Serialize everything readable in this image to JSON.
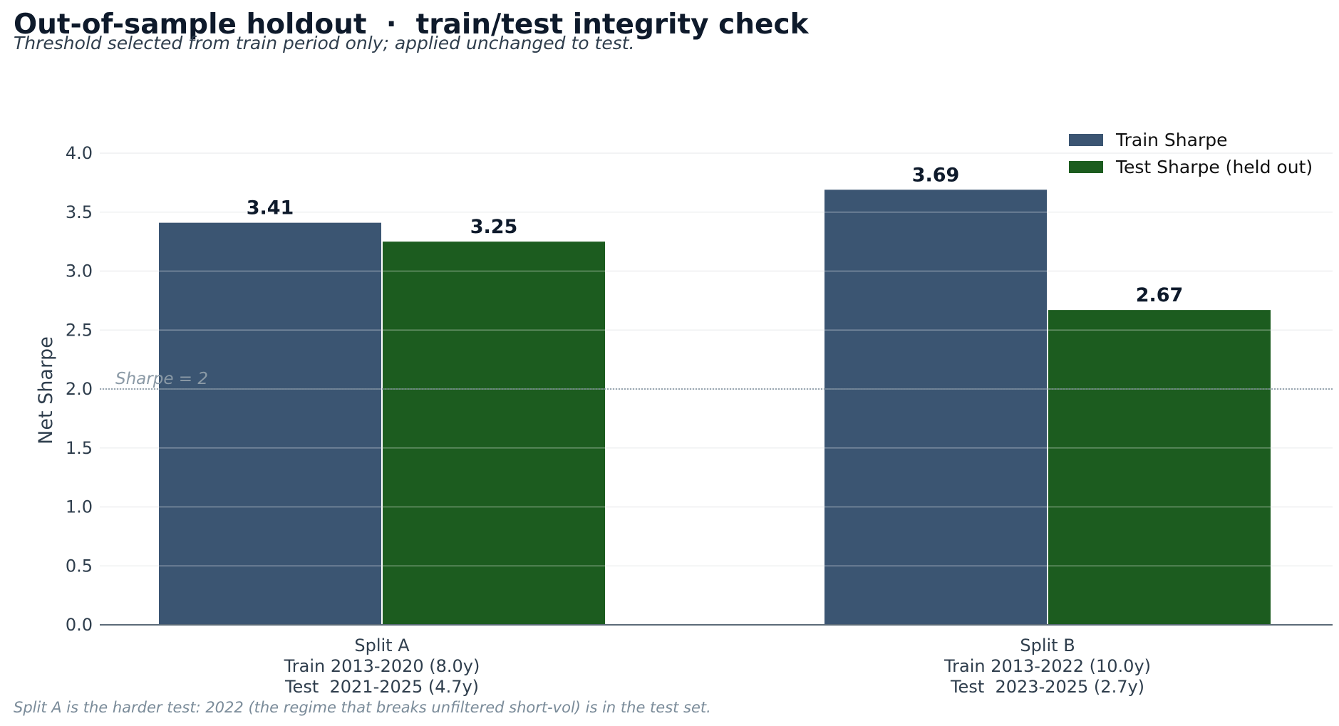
{
  "title": "Out-of-sample holdout  ·  train/test integrity check",
  "subtitle": "Threshold selected from train period only; applied unchanged to test.",
  "footnote": "Split A is the harder test: 2022 (the regime that breaks unfiltered short-vol) is in the test set.",
  "colors": {
    "train": "#3b5572",
    "test": "#1c5c1f",
    "text": "#0e1a2b",
    "axis_text": "#2f3e4d",
    "grid": "#e6e9ec",
    "muted": "#7a8b99"
  },
  "chart_data": {
    "type": "bar",
    "categories": [
      [
        "Split A",
        "Train 2013-2020 (8.0y)",
        "Test  2021-2025 (4.7y)"
      ],
      [
        "Split B",
        "Train 2013-2022 (10.0y)",
        "Test  2023-2025 (2.7y)"
      ]
    ],
    "series": [
      {
        "name": "Train Sharpe",
        "values": [
          3.41,
          3.69
        ]
      },
      {
        "name": "Test Sharpe (held out)",
        "values": [
          3.25,
          2.67
        ]
      }
    ],
    "data_labels": [
      [
        "3.41",
        "3.69"
      ],
      [
        "3.25",
        "2.67"
      ]
    ],
    "ylabel": "Net Sharpe",
    "xlabel": "",
    "ylim": [
      0,
      4.0
    ],
    "yticks": [
      "0.0",
      "0.5",
      "1.0",
      "1.5",
      "2.0",
      "2.5",
      "3.0",
      "3.5",
      "4.0"
    ],
    "grid": true,
    "legend_position": "top-right",
    "reference_line": {
      "value": 2.0,
      "label": "Sharpe = 2",
      "style": "dotted"
    }
  }
}
